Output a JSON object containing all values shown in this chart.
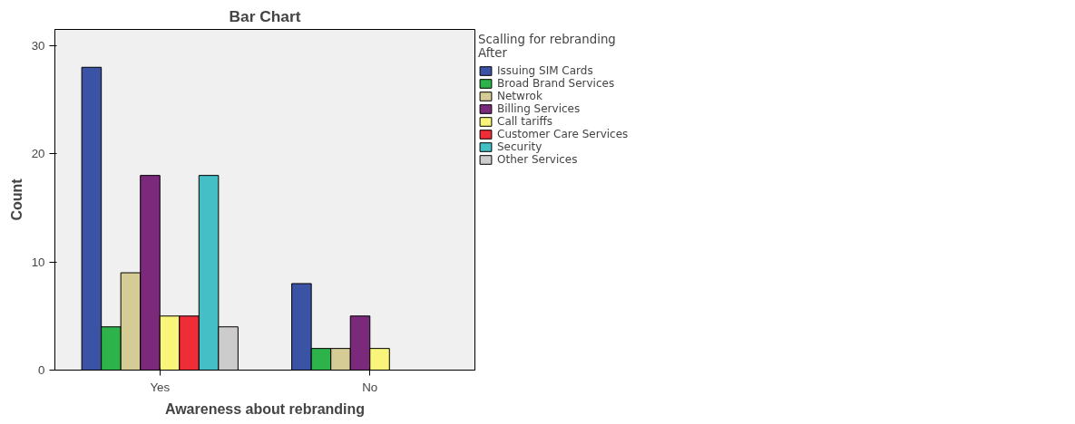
{
  "chart_data": {
    "type": "bar",
    "title": "Bar Chart",
    "xlabel": "Awareness about rebranding",
    "ylabel": "Count",
    "legend_title": "Scalling for rebranding\nAfter",
    "categories": [
      "Yes",
      "No"
    ],
    "ylim": [
      0,
      31.5
    ],
    "yticks": [
      0,
      10,
      20,
      30
    ],
    "grid": false,
    "legend": "right",
    "series": [
      {
        "name": "Issuing SIM Cards",
        "color": "#3a53a4",
        "values": [
          28,
          8
        ]
      },
      {
        "name": "Broad Brand Services",
        "color": "#2db34a",
        "values": [
          4,
          2
        ]
      },
      {
        "name": "Netwrok",
        "color": "#d4cc94",
        "values": [
          9,
          2
        ]
      },
      {
        "name": "Billing Services",
        "color": "#7b2a7b",
        "values": [
          18,
          5
        ]
      },
      {
        "name": "Call tariffs",
        "color": "#f8f57a",
        "values": [
          5,
          2
        ]
      },
      {
        "name": "Customer Care Services",
        "color": "#ee2d36",
        "values": [
          5,
          null
        ]
      },
      {
        "name": "Security",
        "color": "#45bfc6",
        "values": [
          18,
          null
        ]
      },
      {
        "name": "Other Services",
        "color": "#cccccc",
        "values": [
          4,
          null
        ]
      }
    ]
  }
}
